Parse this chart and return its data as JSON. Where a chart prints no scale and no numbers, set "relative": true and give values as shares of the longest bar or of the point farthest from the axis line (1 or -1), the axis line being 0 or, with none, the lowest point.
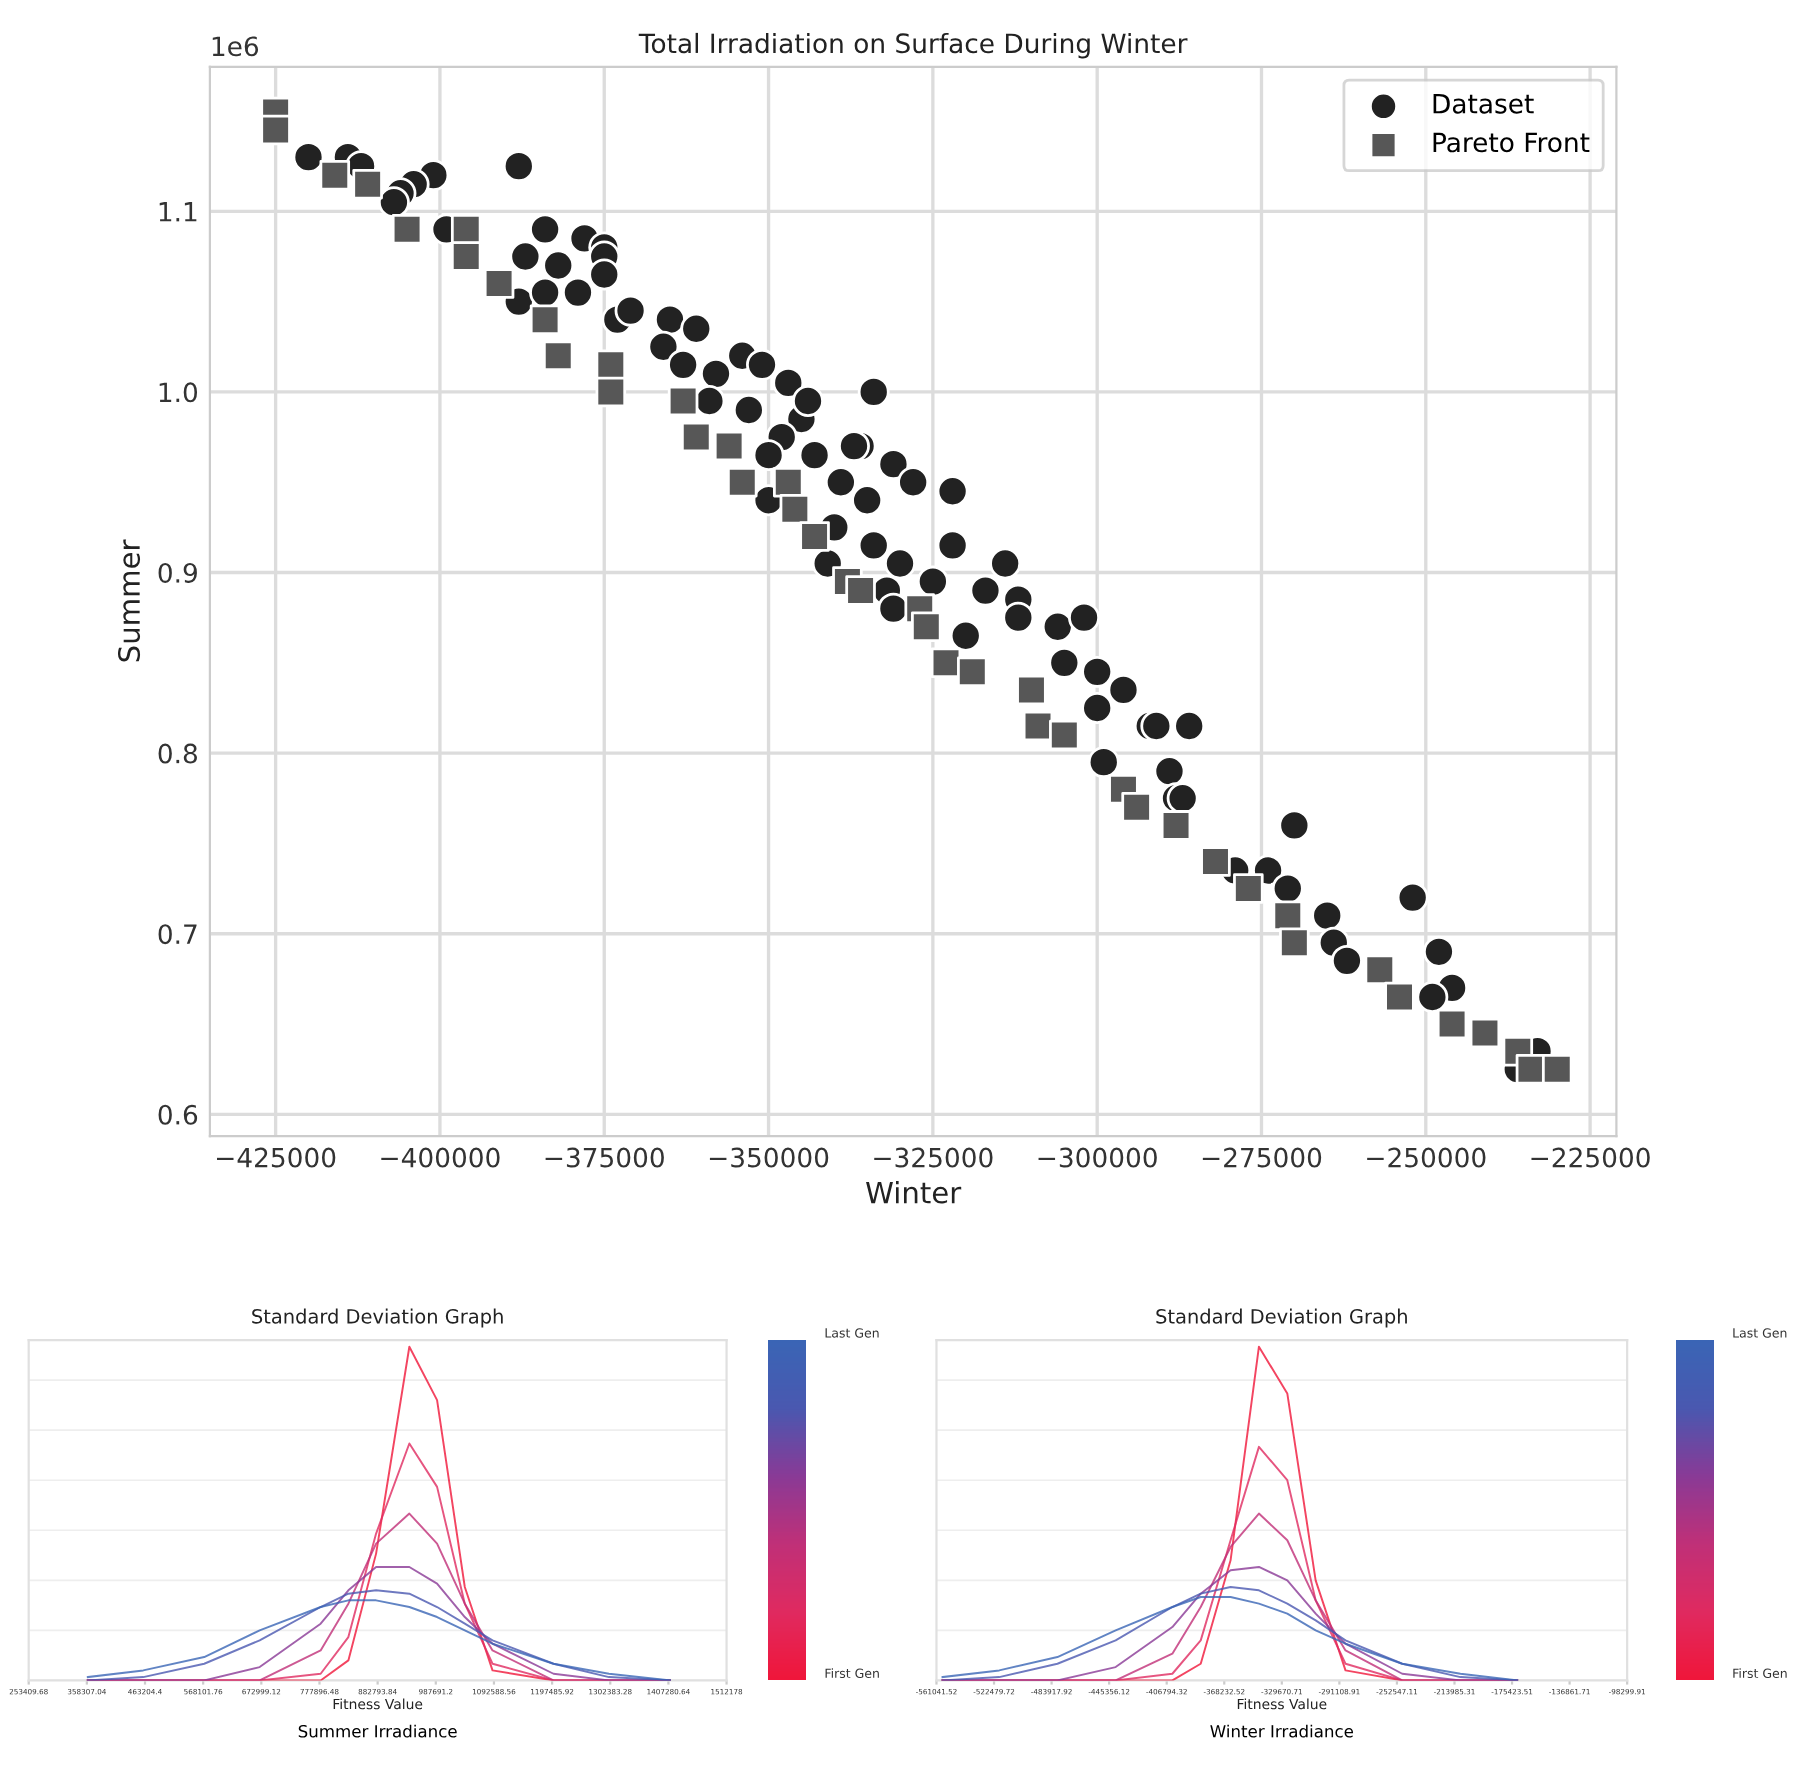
{
  "chart_data": [
    {
      "type": "scatter",
      "title": "Total Irradiation on Surface During Winter",
      "xlabel": "Winter",
      "ylabel": "Summer",
      "annotations": [
        "1e6"
      ],
      "xlim": [
        -435000,
        -221000
      ],
      "ylim": [
        0.588,
        1.18
      ],
      "xticks": [
        {
          "value": -425000,
          "label": "−425000"
        },
        {
          "value": -400000,
          "label": "−400000"
        },
        {
          "value": -375000,
          "label": "−375000"
        },
        {
          "value": -350000,
          "label": "−350000"
        },
        {
          "value": -325000,
          "label": "−325000"
        },
        {
          "value": -300000,
          "label": "−300000"
        },
        {
          "value": -275000,
          "label": "−275000"
        },
        {
          "value": -250000,
          "label": "−250000"
        },
        {
          "value": -225000,
          "label": "−225000"
        }
      ],
      "yticks": [
        0.6,
        0.7,
        0.8,
        0.9,
        {
          "value": 1.0,
          "label": "1.0"
        },
        1.1
      ],
      "grid": true,
      "legend": "top right",
      "series": [
        {
          "name": "Dataset",
          "color": "#222222",
          "marker": "circle",
          "x": [
            -420000,
            -414000,
            -412000,
            -401000,
            -404000,
            -406000,
            -407000,
            -388000,
            -399000,
            -384000,
            -378000,
            -375000,
            -387000,
            -382000,
            -375000,
            -375000,
            -379000,
            -388000,
            -384000,
            -373000,
            -365000,
            -361000,
            -366000,
            -363000,
            -354000,
            -351000,
            -347000,
            -334000,
            -358000,
            -359000,
            -353000,
            -345000,
            -348000,
            -350000,
            -350000,
            -343000,
            -339000,
            -336000,
            -331000,
            -335000,
            -340000,
            -334000,
            -330000,
            -341000,
            -332000,
            -331000,
            -344000,
            -337000,
            -328000,
            -322000,
            -322000,
            -325000,
            -314000,
            -317000,
            -312000,
            -320000,
            -312000,
            -306000,
            -302000,
            -305000,
            -300000,
            -296000,
            -300000,
            -292000,
            -286000,
            -299000,
            -289000,
            -288000,
            -270000,
            -274000,
            -279000,
            -271000,
            -265000,
            -264000,
            -262000,
            -252000,
            -248000,
            -246000,
            -249000,
            -233000,
            -236000,
            -287000,
            -291000,
            -371000
          ],
          "values": [
            1.13,
            1.13,
            1.125,
            1.12,
            1.115,
            1.11,
            1.105,
            1.125,
            1.09,
            1.09,
            1.085,
            1.08,
            1.075,
            1.07,
            1.075,
            1.065,
            1.055,
            1.05,
            1.055,
            1.04,
            1.04,
            1.035,
            1.025,
            1.015,
            1.02,
            1.015,
            1.005,
            1.0,
            1.01,
            0.995,
            0.99,
            0.985,
            0.975,
            0.965,
            0.94,
            0.965,
            0.95,
            0.97,
            0.96,
            0.94,
            0.925,
            0.915,
            0.905,
            0.905,
            0.89,
            0.88,
            0.995,
            0.97,
            0.95,
            0.945,
            0.915,
            0.895,
            0.905,
            0.89,
            0.885,
            0.865,
            0.875,
            0.87,
            0.875,
            0.85,
            0.845,
            0.835,
            0.825,
            0.815,
            0.815,
            0.795,
            0.79,
            0.775,
            0.76,
            0.735,
            0.735,
            0.725,
            0.71,
            0.695,
            0.685,
            0.72,
            0.69,
            0.67,
            0.665,
            0.635,
            0.625,
            0.775,
            0.815,
            1.045
          ]
        },
        {
          "name": "Pareto Front",
          "color": "#575757",
          "marker": "square",
          "x": [
            -425000,
            -425000,
            -416000,
            -411000,
            -405000,
            -396000,
            -396000,
            -391000,
            -384000,
            -382000,
            -374000,
            -374000,
            -363000,
            -361000,
            -356000,
            -354000,
            -347000,
            -346000,
            -343000,
            -338000,
            -336000,
            -327000,
            -326000,
            -323000,
            -319000,
            -310000,
            -309000,
            -305000,
            -296000,
            -294000,
            -288000,
            -282000,
            -277000,
            -271000,
            -270000,
            -257000,
            -254000,
            -246000,
            -241000,
            -236000,
            -234000,
            -230000
          ],
          "values": [
            1.155,
            1.145,
            1.12,
            1.115,
            1.09,
            1.09,
            1.075,
            1.06,
            1.04,
            1.02,
            1.015,
            1.0,
            0.995,
            0.975,
            0.97,
            0.95,
            0.95,
            0.935,
            0.92,
            0.895,
            0.89,
            0.88,
            0.87,
            0.85,
            0.845,
            0.835,
            0.815,
            0.81,
            0.78,
            0.77,
            0.76,
            0.74,
            0.725,
            0.71,
            0.695,
            0.68,
            0.665,
            0.65,
            0.645,
            0.635,
            0.625,
            0.625
          ]
        }
      ]
    },
    {
      "type": "line",
      "title": "Standard Deviation Graph",
      "xlabel": "Fitness Value",
      "annotations": [
        "Summer Irradiance",
        "Last Gen",
        "First Gen"
      ],
      "relative": true,
      "grid": "y",
      "xlim": [
        253409.68,
        1512178
      ],
      "xticks": [
        253409.68,
        358307.04,
        463204.4,
        568101.76,
        672999.12,
        777896.48,
        882793.84,
        987691.2,
        1092588.56,
        1197485.92,
        1302383.28,
        1407280.64,
        1512178
      ],
      "x": [
        360000,
        460000,
        570000,
        670000,
        780000,
        830000,
        880000,
        940000,
        990000,
        1040000,
        1090000,
        1200000,
        1300000,
        1410000
      ],
      "series": [
        {
          "color": "#f0163a",
          "values": [
            0,
            0,
            0,
            0,
            0,
            0.06,
            0.38,
            1,
            0.84,
            0.28,
            0.03,
            0,
            0,
            0
          ]
        },
        {
          "color": "#e02a60",
          "values": [
            0,
            0,
            0,
            0,
            0.02,
            0.13,
            0.44,
            0.71,
            0.58,
            0.23,
            0.05,
            0,
            0,
            0
          ]
        },
        {
          "color": "#c03078",
          "values": [
            0,
            0,
            0,
            0,
            0.09,
            0.23,
            0.41,
            0.5,
            0.41,
            0.23,
            0.09,
            0,
            0,
            0
          ]
        },
        {
          "color": "#8a3a96",
          "values": [
            0,
            0,
            0,
            0.04,
            0.17,
            0.27,
            0.34,
            0.34,
            0.29,
            0.19,
            0.11,
            0.02,
            0,
            0
          ]
        },
        {
          "color": "#4a58b0",
          "values": [
            0,
            0.01,
            0.05,
            0.12,
            0.22,
            0.26,
            0.27,
            0.26,
            0.22,
            0.17,
            0.12,
            0.05,
            0.01,
            0
          ]
        },
        {
          "color": "#3a65b5",
          "values": [
            0.01,
            0.03,
            0.07,
            0.15,
            0.22,
            0.24,
            0.24,
            0.22,
            0.19,
            0.15,
            0.11,
            0.05,
            0.02,
            0
          ]
        }
      ]
    },
    {
      "type": "line",
      "title": "Standard Deviation Graph",
      "xlabel": "Fitness Value",
      "annotations": [
        "Winter Irradiance",
        "Last Gen",
        "First Gen"
      ],
      "relative": true,
      "grid": "y",
      "xlim": [
        -561041.52,
        -98299.91
      ],
      "xticks": [
        -561041.52,
        -522479.72,
        -483917.92,
        -445356.12,
        -406794.32,
        -368232.52,
        -329670.71,
        -291108.91,
        -252547.11,
        -213985.31,
        -175423.51,
        -136861.71,
        -98299.91
      ],
      "x": [
        -557000,
        -519000,
        -480000,
        -441000,
        -403000,
        -384000,
        -364000,
        -345000,
        -326000,
        -307000,
        -287000,
        -249000,
        -210000,
        -172000
      ],
      "series": [
        {
          "color": "#f0163a",
          "values": [
            0,
            0,
            0,
            0,
            0,
            0.05,
            0.36,
            1,
            0.86,
            0.3,
            0.03,
            0,
            0,
            0
          ]
        },
        {
          "color": "#e02a60",
          "values": [
            0,
            0,
            0,
            0,
            0.02,
            0.12,
            0.42,
            0.7,
            0.6,
            0.24,
            0.05,
            0,
            0,
            0
          ]
        },
        {
          "color": "#c03078",
          "values": [
            0,
            0,
            0,
            0,
            0.08,
            0.22,
            0.4,
            0.5,
            0.42,
            0.24,
            0.09,
            0,
            0,
            0
          ]
        },
        {
          "color": "#8a3a96",
          "values": [
            0,
            0,
            0,
            0.04,
            0.16,
            0.26,
            0.33,
            0.34,
            0.3,
            0.2,
            0.11,
            0.02,
            0,
            0
          ]
        },
        {
          "color": "#4a58b0",
          "values": [
            0,
            0.01,
            0.05,
            0.12,
            0.22,
            0.26,
            0.28,
            0.27,
            0.23,
            0.18,
            0.12,
            0.05,
            0.01,
            0
          ]
        },
        {
          "color": "#3a65b5",
          "values": [
            0.01,
            0.03,
            0.07,
            0.15,
            0.22,
            0.25,
            0.25,
            0.23,
            0.2,
            0.15,
            0.11,
            0.05,
            0.02,
            0
          ]
        }
      ]
    }
  ]
}
